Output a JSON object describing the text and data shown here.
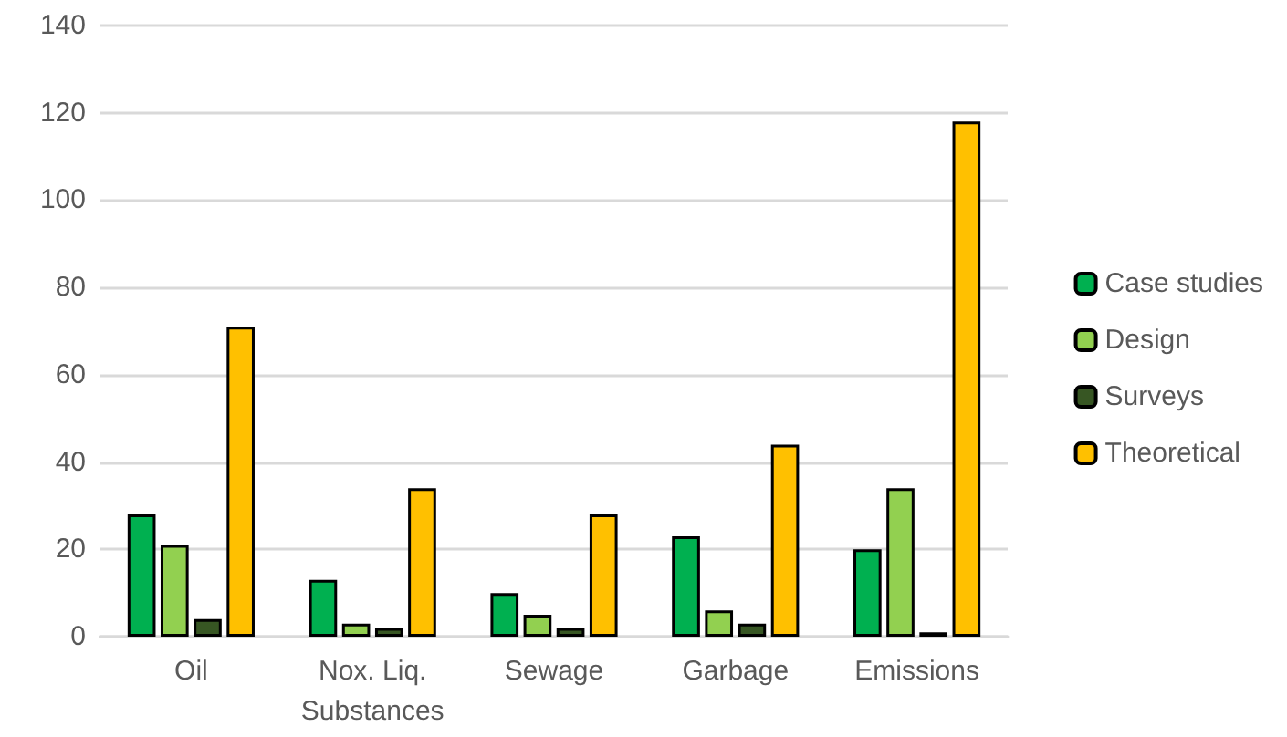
{
  "chart_data": {
    "type": "bar",
    "categories": [
      "Oil",
      "Nox. Liq.\nSubstances",
      "Sewage",
      "Garbage",
      "Emissions"
    ],
    "series": [
      {
        "name": "Case studies",
        "color": "#00b050",
        "values": [
          28,
          13,
          10,
          23,
          20
        ]
      },
      {
        "name": "Design",
        "color": "#92d050",
        "values": [
          21,
          3,
          5,
          6,
          34
        ]
      },
      {
        "name": "Surveys",
        "color": "#375623",
        "values": [
          4,
          2,
          2,
          3,
          1
        ]
      },
      {
        "name": "Theoretical",
        "color": "#ffc000",
        "values": [
          71,
          34,
          28,
          44,
          118
        ]
      }
    ],
    "ylim": [
      0,
      140
    ],
    "yticks": [
      0,
      20,
      40,
      60,
      80,
      100,
      120,
      140
    ],
    "grid": "y",
    "legend": "right"
  }
}
